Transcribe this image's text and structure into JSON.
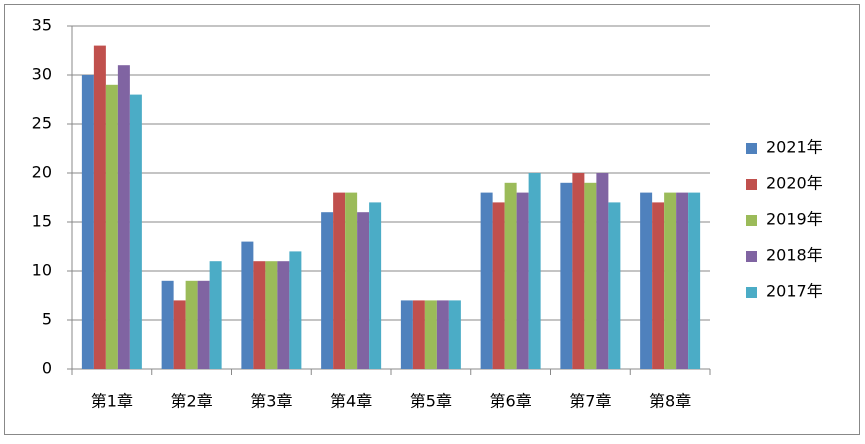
{
  "chart_data": {
    "type": "bar",
    "categories": [
      "第1章",
      "第2章",
      "第3章",
      "第4章",
      "第5章",
      "第6章",
      "第7章",
      "第8章"
    ],
    "series": [
      {
        "name": "2021年",
        "color": "#4f81bd",
        "values": [
          30,
          9,
          13,
          16,
          7,
          18,
          19,
          18
        ]
      },
      {
        "name": "2020年",
        "color": "#c0504d",
        "values": [
          33,
          7,
          11,
          18,
          7,
          17,
          20,
          17
        ]
      },
      {
        "name": "2019年",
        "color": "#9bbb59",
        "values": [
          29,
          9,
          11,
          18,
          7,
          19,
          19,
          18
        ]
      },
      {
        "name": "2018年",
        "color": "#8064a2",
        "values": [
          31,
          9,
          11,
          16,
          7,
          18,
          20,
          18
        ]
      },
      {
        "name": "2017年",
        "color": "#4bacc6",
        "values": [
          28,
          11,
          12,
          17,
          7,
          20,
          17,
          18
        ]
      }
    ],
    "ylim": [
      0,
      35
    ],
    "yticks": [
      0,
      5,
      10,
      15,
      20,
      25,
      30,
      35
    ],
    "grid": true,
    "legend": "right"
  }
}
